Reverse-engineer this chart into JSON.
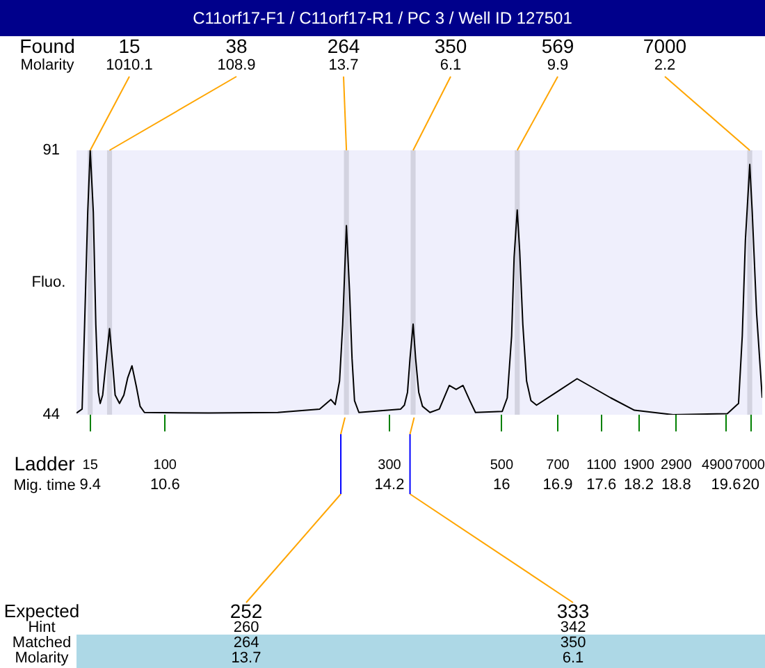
{
  "chart_data": {
    "type": "line",
    "title": "C11orf17-F1 / C11orf17-R1 / PC 3 / Well ID 127501",
    "ylabel": "Fluo.",
    "x": [
      9.18,
      9.27,
      9.31,
      9.36,
      9.4,
      9.45,
      9.49,
      9.53,
      9.56,
      9.6,
      9.65,
      9.71,
      9.76,
      9.8,
      9.87,
      9.94,
      10.0,
      10.07,
      10.14,
      10.2,
      10.27,
      11.3,
      12.41,
      13.08,
      13.26,
      13.33,
      13.4,
      13.45,
      13.51,
      13.56,
      13.6,
      13.64,
      13.71,
      14.38,
      14.44,
      14.49,
      14.53,
      14.58,
      14.62,
      14.67,
      14.73,
      14.85,
      15.0,
      15.16,
      15.27,
      15.38,
      15.49,
      15.58,
      16.01,
      16.09,
      16.16,
      16.2,
      16.25,
      16.29,
      16.34,
      16.4,
      16.47,
      16.56,
      16.88,
      17.21,
      17.75,
      18.13,
      18.75,
      19.62,
      19.8,
      19.86,
      19.91,
      19.98,
      20.02,
      20.09,
      20.18
    ],
    "series": [
      {
        "color": "#000000",
        "values": [
          44.3,
          45,
          60,
          80,
          91,
          80,
          60,
          48,
          46,
          47.5,
          53,
          59.3,
          53,
          47.5,
          46,
          47.5,
          50.5,
          52.7,
          49,
          45.5,
          44.4,
          44.3,
          44.4,
          45,
          46.7,
          45.8,
          50,
          60,
          77.6,
          66,
          54,
          46.5,
          44.4,
          45,
          45.7,
          48,
          54,
          60.1,
          54,
          48,
          45.5,
          44.4,
          45,
          49.2,
          48.5,
          49.2,
          46.5,
          44.4,
          44.6,
          47,
          58,
          72,
          80.4,
          73,
          60,
          50,
          46.5,
          45.7,
          48,
          50.4,
          47,
          44.8,
          44,
          44.2,
          46,
          58,
          75,
          88.5,
          80,
          62,
          47
        ]
      }
    ],
    "xlim": [
      9.18,
      20.18
    ],
    "ylim": [
      44,
      91
    ],
    "yticks": [
      44,
      91
    ],
    "xticks": [
      9.4,
      10.6,
      14.2,
      16,
      16.9,
      17.6,
      18.2,
      18.8,
      19.6,
      20
    ],
    "bands": [
      {
        "axis": "x",
        "from": 9.36,
        "to": 9.44,
        "color": "#d3d3e0"
      },
      {
        "axis": "x",
        "from": 9.67,
        "to": 9.75,
        "color": "#d3d3e0"
      },
      {
        "axis": "x",
        "from": 13.47,
        "to": 13.55,
        "color": "#d3d3e0"
      },
      {
        "axis": "x",
        "from": 14.54,
        "to": 14.62,
        "color": "#d3d3e0"
      },
      {
        "axis": "x",
        "from": 16.21,
        "to": 16.29,
        "color": "#d3d3e0"
      },
      {
        "axis": "x",
        "from": 19.94,
        "to": 20.02,
        "color": "#d3d3e0"
      }
    ],
    "annotations": [
      "Found\nMolarity",
      "Ladder\nMig. time",
      "Expected\nHint\nMatched\nMolarity",
      {
        "text": "15\n1010.1",
        "x": 9.4,
        "y": 91
      },
      {
        "text": "38\n108.9",
        "x": 9.71,
        "y": 91
      },
      {
        "text": "264\n13.7",
        "x": 13.51,
        "y": 91
      },
      {
        "text": "350\n6.1",
        "x": 14.58,
        "y": 91
      },
      {
        "text": "569\n9.9",
        "x": 16.25,
        "y": 91
      },
      {
        "text": "7000\n2.2",
        "x": 19.98,
        "y": 91
      },
      "15",
      "100",
      "300",
      "500",
      "700",
      "1100",
      "1900",
      "2900",
      "4900",
      "7000",
      {
        "text": "252\n260\n264\n13.7",
        "x": 13.42
      },
      {
        "text": "333\n342\n350\n6.1",
        "x": 14.53
      }
    ],
    "legend": false,
    "grid": false
  }
}
